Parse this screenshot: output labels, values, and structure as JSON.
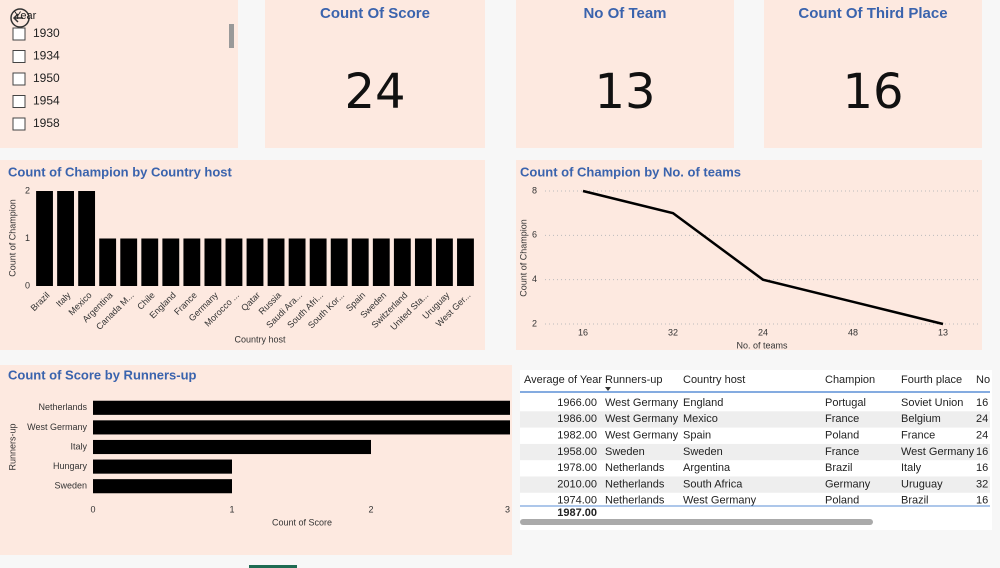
{
  "slicer": {
    "title": "Year",
    "items": [
      "1930",
      "1934",
      "1950",
      "1954",
      "1958"
    ]
  },
  "cards": [
    {
      "title": "Count Of Score",
      "value": 24
    },
    {
      "title": "No Of Team",
      "value": 13
    },
    {
      "title": "Count Of Third Place",
      "value": 16
    }
  ],
  "chart_data": [
    {
      "type": "bar",
      "title": "Count of Champion by Country host",
      "x_label": "Country host",
      "y_label": "Count of Champion",
      "categories": [
        "Brazil",
        "Italy",
        "Mexico",
        "Argentina",
        "Canada M...",
        "Chile",
        "England",
        "France",
        "Germany",
        "Morocco ...",
        "Qatar",
        "Russia",
        "Saudi Ara...",
        "South Afri...",
        "South Kor...",
        "Spain",
        "Sweden",
        "Switzerland",
        "United Sta...",
        "Uruguay",
        "West Ger..."
      ],
      "values": [
        2,
        2,
        2,
        1,
        1,
        1,
        1,
        1,
        1,
        1,
        1,
        1,
        1,
        1,
        1,
        1,
        1,
        1,
        1,
        1,
        1
      ],
      "color": "#000000",
      "ylim": [
        0,
        2
      ],
      "yticks": [
        0,
        1,
        2
      ],
      "grid": false
    },
    {
      "type": "line",
      "title": "Count of Champion by No. of teams",
      "x_label": "No. of teams",
      "y_label": "Count of Champion",
      "categories": [
        "16",
        "32",
        "24",
        "48",
        "13"
      ],
      "values": [
        8,
        7,
        4,
        3,
        2
      ],
      "color": "#000000",
      "ylim": [
        2,
        8
      ],
      "yticks": [
        2,
        4,
        6,
        8
      ],
      "grid": true
    },
    {
      "type": "barh",
      "title": "Count of Score by Runners-up",
      "x_label": "Count of Score",
      "y_label": "Runners-up",
      "categories": [
        "Netherlands",
        "West Germany",
        "Italy",
        "Hungary",
        "Sweden"
      ],
      "values": [
        3,
        3,
        2,
        1,
        1
      ],
      "color": "#000000",
      "xlim": [
        0,
        3
      ],
      "xticks": [
        0,
        1,
        2,
        3
      ],
      "grid": false
    }
  ],
  "table": {
    "columns": [
      "Average of Year",
      "Runners-up",
      "Country host",
      "Champion",
      "Fourth place",
      "No"
    ],
    "rows": [
      [
        "1966.00",
        "West Germany",
        "England",
        "Portugal",
        "Soviet Union",
        "16"
      ],
      [
        "1986.00",
        "West Germany",
        "Mexico",
        "France",
        "Belgium",
        "24"
      ],
      [
        "1982.00",
        "West Germany",
        "Spain",
        "Poland",
        "France",
        "24"
      ],
      [
        "1958.00",
        "Sweden",
        "Sweden",
        "France",
        "West Germany",
        "16"
      ],
      [
        "1978.00",
        "Netherlands",
        "Argentina",
        "Brazil",
        "Italy",
        "16"
      ],
      [
        "2010.00",
        "Netherlands",
        "South Africa",
        "Germany",
        "Uruguay",
        "32"
      ],
      [
        "1974.00",
        "Netherlands",
        "West Germany",
        "Poland",
        "Brazil",
        "16"
      ]
    ],
    "total": "1987.00"
  }
}
